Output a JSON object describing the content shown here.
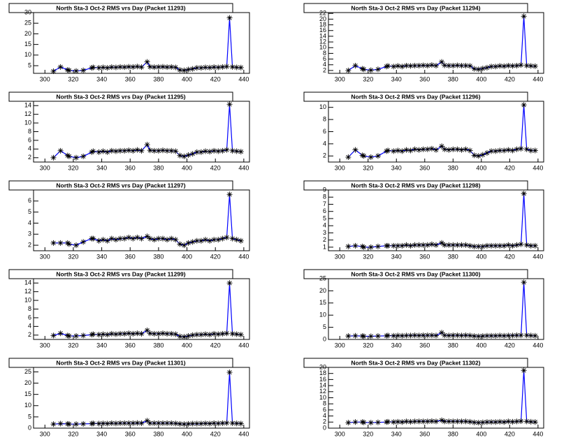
{
  "chart_data": [
    {
      "type": "line",
      "title": "North Sta-3 Oct-2 RMS vrs Day (Packet 11293)",
      "color": "#0000ff",
      "marker_color": "#000000",
      "xlim": [
        292,
        444
      ],
      "xticks": [
        300,
        320,
        340,
        360,
        380,
        400,
        420,
        440
      ],
      "ylim": [
        1.4,
        30
      ],
      "yticks": [
        5,
        10,
        15,
        20,
        25,
        30
      ],
      "x": [
        306,
        311,
        316,
        317,
        322,
        327,
        333,
        334,
        338,
        341,
        344,
        347,
        350,
        353,
        356,
        359,
        362,
        365,
        368,
        372,
        374,
        377,
        380,
        383,
        386,
        389,
        392,
        395,
        398,
        401,
        404,
        407,
        410,
        413,
        416,
        419,
        422,
        425,
        428,
        430,
        432,
        435,
        438
      ],
      "values": [
        2.4,
        4.4,
        3,
        2.8,
        2.5,
        2.8,
        4,
        4.2,
        4,
        4.2,
        4,
        4.3,
        4.2,
        4.4,
        4.3,
        4.5,
        4.4,
        4.6,
        4.3,
        6.8,
        4.5,
        4.3,
        4.4,
        4.5,
        4.3,
        4.4,
        4.2,
        3,
        2.8,
        3.2,
        3.5,
        4,
        4,
        4.2,
        4.1,
        4.3,
        4.2,
        4.4,
        4.6,
        27.5,
        4.4,
        4.2,
        4.1
      ]
    },
    {
      "type": "line",
      "title": "North Sta-3 Oct-2 RMS vrs Day (Packet 11294)",
      "color": "#0000ff",
      "marker_color": "#000000",
      "xlim": [
        292,
        444
      ],
      "xticks": [
        300,
        320,
        340,
        360,
        380,
        400,
        420,
        440
      ],
      "ylim": [
        1,
        22.3
      ],
      "yticks": [
        2,
        4,
        6,
        8,
        10,
        12,
        14,
        16,
        18,
        20,
        22
      ],
      "x": [
        306,
        311,
        316,
        317,
        322,
        327,
        333,
        334,
        338,
        341,
        344,
        347,
        350,
        353,
        356,
        359,
        362,
        365,
        368,
        372,
        374,
        377,
        380,
        383,
        386,
        389,
        392,
        395,
        398,
        401,
        404,
        407,
        410,
        413,
        416,
        419,
        422,
        425,
        428,
        430,
        432,
        435,
        438
      ],
      "values": [
        2,
        3.7,
        2.6,
        2.4,
        2.1,
        2.4,
        3.4,
        3.6,
        3.4,
        3.6,
        3.4,
        3.7,
        3.6,
        3.7,
        3.7,
        3.8,
        3.7,
        3.9,
        3.7,
        5,
        3.8,
        3.7,
        3.7,
        3.8,
        3.7,
        3.7,
        3.6,
        2.6,
        2.4,
        2.7,
        3,
        3.4,
        3.4,
        3.6,
        3.5,
        3.7,
        3.6,
        3.7,
        3.9,
        21,
        3.7,
        3.6,
        3.5
      ]
    },
    {
      "type": "line",
      "title": "North Sta-3 Oct-2 RMS vrs Day (Packet 11295)",
      "color": "#0000ff",
      "marker_color": "#000000",
      "xlim": [
        292,
        444
      ],
      "xticks": [
        300,
        320,
        340,
        360,
        380,
        400,
        420,
        440
      ],
      "ylim": [
        1,
        15
      ],
      "yticks": [
        2,
        4,
        6,
        8,
        10,
        12,
        14
      ],
      "x": [
        306,
        311,
        316,
        317,
        322,
        327,
        333,
        334,
        338,
        341,
        344,
        347,
        350,
        353,
        356,
        359,
        362,
        365,
        368,
        372,
        374,
        377,
        380,
        383,
        386,
        389,
        392,
        395,
        398,
        401,
        404,
        407,
        410,
        413,
        416,
        419,
        422,
        425,
        428,
        430,
        432,
        435,
        438
      ],
      "values": [
        2,
        3.6,
        2.5,
        2.3,
        2,
        2.3,
        3.3,
        3.5,
        3.3,
        3.5,
        3.3,
        3.6,
        3.5,
        3.6,
        3.6,
        3.7,
        3.6,
        3.8,
        3.6,
        5,
        3.7,
        3.6,
        3.6,
        3.7,
        3.6,
        3.6,
        3.5,
        2.5,
        2.3,
        2.6,
        2.9,
        3.3,
        3.3,
        3.5,
        3.4,
        3.6,
        3.5,
        3.6,
        3.8,
        14.3,
        3.6,
        3.5,
        3.4
      ]
    },
    {
      "type": "line",
      "title": "North Sta-3 Oct-2 RMS vrs Day (Packet 11296)",
      "color": "#0000ff",
      "marker_color": "#000000",
      "xlim": [
        292,
        444
      ],
      "xticks": [
        300,
        320,
        340,
        360,
        380,
        400,
        420,
        440
      ],
      "ylim": [
        1,
        11
      ],
      "yticks": [
        2,
        4,
        6,
        8,
        10
      ],
      "x": [
        306,
        311,
        316,
        317,
        322,
        327,
        333,
        334,
        338,
        341,
        344,
        347,
        350,
        353,
        356,
        359,
        362,
        365,
        368,
        372,
        374,
        377,
        380,
        383,
        386,
        389,
        392,
        395,
        398,
        401,
        404,
        407,
        410,
        413,
        416,
        419,
        422,
        425,
        428,
        430,
        432,
        435,
        438
      ],
      "values": [
        1.8,
        3,
        2.1,
        2,
        1.8,
        2,
        2.8,
        2.9,
        2.8,
        2.9,
        2.8,
        3,
        2.9,
        3.1,
        3,
        3.1,
        3.1,
        3.2,
        3,
        3.6,
        3.1,
        3,
        3.1,
        3.1,
        3,
        3.1,
        2.9,
        2.1,
        2,
        2.2,
        2.5,
        2.8,
        2.8,
        2.9,
        2.9,
        3,
        2.9,
        3.1,
        3.2,
        10.4,
        3.1,
        2.9,
        2.9
      ]
    },
    {
      "type": "line",
      "title": "North Sta-3 Oct-2 RMS vrs Day (Packet 11297)",
      "color": "#0000ff",
      "marker_color": "#000000",
      "xlim": [
        292,
        444
      ],
      "xticks": [
        300,
        320,
        340,
        360,
        380,
        400,
        420,
        440
      ],
      "ylim": [
        1.5,
        7
      ],
      "yticks": [
        2,
        3,
        4,
        5,
        6
      ],
      "x": [
        306,
        311,
        316,
        317,
        322,
        327,
        333,
        334,
        338,
        341,
        344,
        347,
        350,
        353,
        356,
        359,
        362,
        365,
        368,
        372,
        374,
        377,
        380,
        383,
        386,
        389,
        392,
        395,
        398,
        401,
        404,
        407,
        410,
        413,
        416,
        419,
        422,
        425,
        428,
        430,
        432,
        435,
        438
      ],
      "values": [
        2.2,
        2.2,
        2.2,
        2.1,
        2,
        2.3,
        2.6,
        2.6,
        2.4,
        2.5,
        2.4,
        2.6,
        2.5,
        2.6,
        2.6,
        2.7,
        2.6,
        2.7,
        2.6,
        2.8,
        2.6,
        2.5,
        2.6,
        2.6,
        2.5,
        2.6,
        2.5,
        2.1,
        2,
        2.2,
        2.3,
        2.4,
        2.4,
        2.5,
        2.4,
        2.5,
        2.5,
        2.6,
        2.7,
        6.6,
        2.6,
        2.5,
        2.4
      ]
    },
    {
      "type": "line",
      "title": "North Sta-3 Oct-2 RMS vrs Day (Packet 11298)",
      "color": "#0000ff",
      "marker_color": "#000000",
      "xlim": [
        292,
        444
      ],
      "xticks": [
        300,
        320,
        340,
        360,
        380,
        400,
        420,
        440
      ],
      "ylim": [
        0.5,
        9
      ],
      "yticks": [
        1,
        2,
        3,
        4,
        5,
        6,
        7,
        8,
        9
      ],
      "x": [
        306,
        311,
        316,
        317,
        322,
        327,
        333,
        334,
        338,
        341,
        344,
        347,
        350,
        353,
        356,
        359,
        362,
        365,
        368,
        372,
        374,
        377,
        380,
        383,
        386,
        389,
        392,
        395,
        398,
        401,
        404,
        407,
        410,
        413,
        416,
        419,
        422,
        425,
        428,
        430,
        432,
        435,
        438
      ],
      "values": [
        1.1,
        1.2,
        1.1,
        1,
        1,
        1.1,
        1.2,
        1.2,
        1.2,
        1.2,
        1.2,
        1.3,
        1.2,
        1.3,
        1.3,
        1.3,
        1.3,
        1.4,
        1.3,
        1.6,
        1.3,
        1.3,
        1.3,
        1.3,
        1.3,
        1.3,
        1.2,
        1.1,
        1.1,
        1.1,
        1.2,
        1.2,
        1.2,
        1.2,
        1.2,
        1.3,
        1.2,
        1.3,
        1.4,
        8.5,
        1.3,
        1.2,
        1.2
      ]
    },
    {
      "type": "line",
      "title": "North Sta-3 Oct-2 RMS vrs Day (Packet 11299)",
      "color": "#0000ff",
      "marker_color": "#000000",
      "xlim": [
        292,
        444
      ],
      "xticks": [
        300,
        320,
        340,
        360,
        380,
        400,
        420,
        440
      ],
      "ylim": [
        1,
        15
      ],
      "yticks": [
        2,
        4,
        6,
        8,
        10,
        12,
        14
      ],
      "x": [
        306,
        311,
        316,
        317,
        322,
        327,
        333,
        334,
        338,
        341,
        344,
        347,
        350,
        353,
        356,
        359,
        362,
        365,
        368,
        372,
        374,
        377,
        380,
        383,
        386,
        389,
        392,
        395,
        398,
        401,
        404,
        407,
        410,
        413,
        416,
        419,
        422,
        425,
        428,
        430,
        432,
        435,
        438
      ],
      "values": [
        1.9,
        2.4,
        1.9,
        1.8,
        1.8,
        1.9,
        2.1,
        2.2,
        2.1,
        2.2,
        2.1,
        2.3,
        2.2,
        2.3,
        2.3,
        2.4,
        2.3,
        2.4,
        2.3,
        3.1,
        2.4,
        2.3,
        2.3,
        2.4,
        2.3,
        2.3,
        2.2,
        1.7,
        1.6,
        1.8,
        2,
        2.1,
        2.1,
        2.2,
        2.1,
        2.3,
        2.2,
        2.3,
        2.4,
        14,
        2.3,
        2.2,
        2.1
      ]
    },
    {
      "type": "line",
      "title": "North Sta-3 Oct-2 RMS vrs Day (Packet 11300)",
      "color": "#0000ff",
      "marker_color": "#000000",
      "xlim": [
        292,
        444
      ],
      "xticks": [
        300,
        320,
        340,
        360,
        380,
        400,
        420,
        440
      ],
      "ylim": [
        0,
        25
      ],
      "yticks": [
        0,
        5,
        10,
        15,
        20,
        25
      ],
      "x": [
        306,
        311,
        316,
        317,
        322,
        327,
        333,
        334,
        338,
        341,
        344,
        347,
        350,
        353,
        356,
        359,
        362,
        365,
        368,
        372,
        374,
        377,
        380,
        383,
        386,
        389,
        392,
        395,
        398,
        401,
        404,
        407,
        410,
        413,
        416,
        419,
        422,
        425,
        428,
        430,
        432,
        435,
        438
      ],
      "values": [
        1.4,
        1.5,
        1.4,
        1.3,
        1.3,
        1.4,
        1.5,
        1.6,
        1.5,
        1.6,
        1.5,
        1.6,
        1.6,
        1.7,
        1.6,
        1.7,
        1.7,
        1.7,
        1.6,
        2.8,
        1.7,
        1.6,
        1.7,
        1.7,
        1.6,
        1.7,
        1.6,
        1.4,
        1.3,
        1.4,
        1.5,
        1.5,
        1.5,
        1.6,
        1.5,
        1.6,
        1.6,
        1.7,
        1.7,
        23.5,
        1.7,
        1.6,
        1.5
      ]
    },
    {
      "type": "line",
      "title": "North Sta-3 Oct-2 RMS vrs Day (Packet 11301)",
      "color": "#0000ff",
      "marker_color": "#000000",
      "xlim": [
        292,
        444
      ],
      "xticks": [
        300,
        320,
        340,
        360,
        380,
        400,
        420,
        440
      ],
      "ylim": [
        0,
        27
      ],
      "yticks": [
        0,
        5,
        10,
        15,
        20,
        25
      ],
      "x": [
        306,
        311,
        316,
        317,
        322,
        327,
        333,
        334,
        338,
        341,
        344,
        347,
        350,
        353,
        356,
        359,
        362,
        365,
        368,
        372,
        374,
        377,
        380,
        383,
        386,
        389,
        392,
        395,
        398,
        401,
        404,
        407,
        410,
        413,
        416,
        419,
        422,
        425,
        428,
        430,
        432,
        435,
        438
      ],
      "values": [
        1.8,
        2,
        1.9,
        1.8,
        1.8,
        1.9,
        2,
        2.1,
        2,
        2.1,
        2,
        2.2,
        2.1,
        2.2,
        2.2,
        2.2,
        2.2,
        2.3,
        2.2,
        3.3,
        2.2,
        2.2,
        2.2,
        2.2,
        2.2,
        2.2,
        2.1,
        1.9,
        1.8,
        1.9,
        2,
        2,
        2,
        2.1,
        2,
        2.2,
        2.1,
        2.2,
        2.3,
        24.8,
        2.2,
        2.1,
        2
      ]
    },
    {
      "type": "line",
      "title": "North Sta-3 Oct-2 RMS vrs Day (Packet 11302)",
      "color": "#0000ff",
      "marker_color": "#000000",
      "xlim": [
        292,
        444
      ],
      "xticks": [
        300,
        320,
        340,
        360,
        380,
        400,
        420,
        440
      ],
      "ylim": [
        0,
        20
      ],
      "yticks": [
        0,
        2,
        4,
        6,
        8,
        10,
        12,
        14,
        16,
        18,
        20
      ],
      "x": [
        306,
        311,
        316,
        317,
        322,
        327,
        333,
        334,
        338,
        341,
        344,
        347,
        350,
        353,
        356,
        359,
        362,
        365,
        368,
        372,
        374,
        377,
        380,
        383,
        386,
        389,
        392,
        395,
        398,
        401,
        404,
        407,
        410,
        413,
        416,
        419,
        422,
        425,
        428,
        430,
        432,
        435,
        438
      ],
      "values": [
        1.8,
        2,
        2,
        1.9,
        1.8,
        1.9,
        2,
        2.1,
        2,
        2.1,
        2,
        2.2,
        2.1,
        2.2,
        2.2,
        2.2,
        2.2,
        2.3,
        2.2,
        2.6,
        2.2,
        2.2,
        2.2,
        2.2,
        2.2,
        2.2,
        2.1,
        1.9,
        1.8,
        1.9,
        2,
        2,
        2,
        2.1,
        2,
        2.2,
        2.1,
        2.2,
        2.3,
        19,
        2.2,
        2.1,
        2
      ]
    }
  ]
}
